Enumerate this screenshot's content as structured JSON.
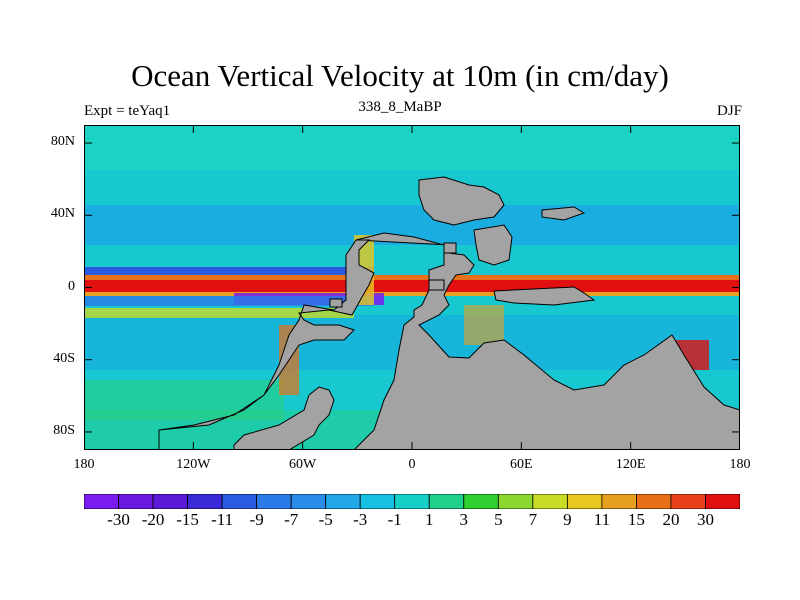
{
  "title": "Ocean Vertical Velocity at 10m (in cm/day)",
  "subtitle_left": "Expt = teYaq1",
  "subtitle_center": "338_8_MaBP",
  "subtitle_right": "DJF",
  "map": {
    "lon_range": [
      -180,
      180
    ],
    "lat_range": [
      -90,
      90
    ],
    "y_ticks": [
      {
        "label": "80N",
        "lat": 80
      },
      {
        "label": "40N",
        "lat": 40
      },
      {
        "label": "0",
        "lat": 0
      },
      {
        "label": "40S",
        "lat": -40
      },
      {
        "label": "80S",
        "lat": -80
      }
    ],
    "x_ticks": [
      {
        "label": "180",
        "lon": -180
      },
      {
        "label": "120W",
        "lon": -120
      },
      {
        "label": "60W",
        "lon": -60
      },
      {
        "label": "0",
        "lon": 0
      },
      {
        "label": "60E",
        "lon": 60
      },
      {
        "label": "120E",
        "lon": 120
      },
      {
        "label": "180",
        "lon": 180
      }
    ]
  },
  "colorbar": {
    "labels": [
      "-30",
      "-20",
      "-15",
      "-11",
      "-9",
      "-7",
      "-5",
      "-3",
      "-1",
      "1",
      "3",
      "5",
      "7",
      "9",
      "11",
      "15",
      "20",
      "30"
    ],
    "colors": [
      "#7a1cf0",
      "#6a18e0",
      "#5a1ad8",
      "#3a2ad8",
      "#2a5ae0",
      "#2a7ae8",
      "#2a8ce8",
      "#22a8e8",
      "#16c0e0",
      "#16d0c8",
      "#20d08c",
      "#30d030",
      "#8cd830",
      "#c8dc28",
      "#e8c820",
      "#e8a020",
      "#e87018",
      "#e84018",
      "#e01010"
    ]
  },
  "colors": {
    "land": "#a3a3a3",
    "ocean_base": "#1ccfd0",
    "equator_band": "#e81c1c"
  }
}
